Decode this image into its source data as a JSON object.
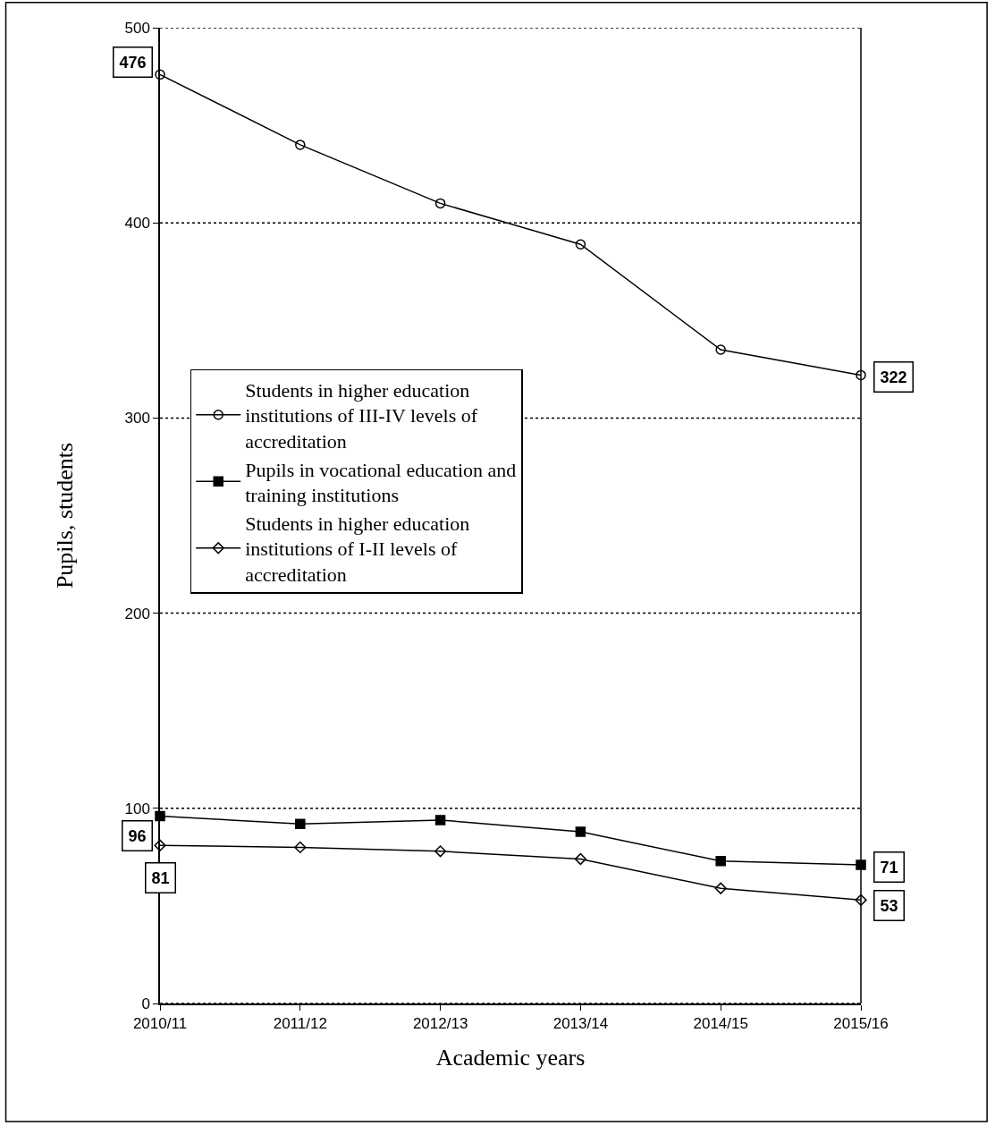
{
  "chart_data": {
    "type": "line",
    "xlabel": "Academic years",
    "ylabel": "Pupils, students",
    "categories": [
      "2010/11",
      "2011/12",
      "2012/13",
      "2013/14",
      "2014/15",
      "2015/16"
    ],
    "series": [
      {
        "name": "Students in higher education institutions of III-IV levels of accreditation",
        "color": "#000000",
        "marker": "circle",
        "values": [
          476,
          440,
          410,
          389,
          335,
          322
        ],
        "value_labels": [
          "476",
          null,
          null,
          null,
          null,
          "322"
        ]
      },
      {
        "name": "Pupils in vocational education and training institutions",
        "color": "#000000",
        "marker": "square",
        "values": [
          96,
          92,
          94,
          88,
          73,
          71
        ],
        "value_labels": [
          "96",
          null,
          null,
          null,
          null,
          "71"
        ]
      },
      {
        "name": "Students in higher education institutions of I-II levels of accreditation",
        "color": "#000000",
        "marker": "diamond",
        "values": [
          81,
          80,
          78,
          74,
          59,
          53
        ],
        "value_labels": [
          "81",
          null,
          null,
          null,
          null,
          "53"
        ]
      }
    ],
    "ylim": [
      0,
      500
    ],
    "yticks": [
      0,
      100,
      200,
      300,
      400,
      500
    ],
    "grid": "y",
    "legend": "left",
    "line_style": "solid"
  }
}
